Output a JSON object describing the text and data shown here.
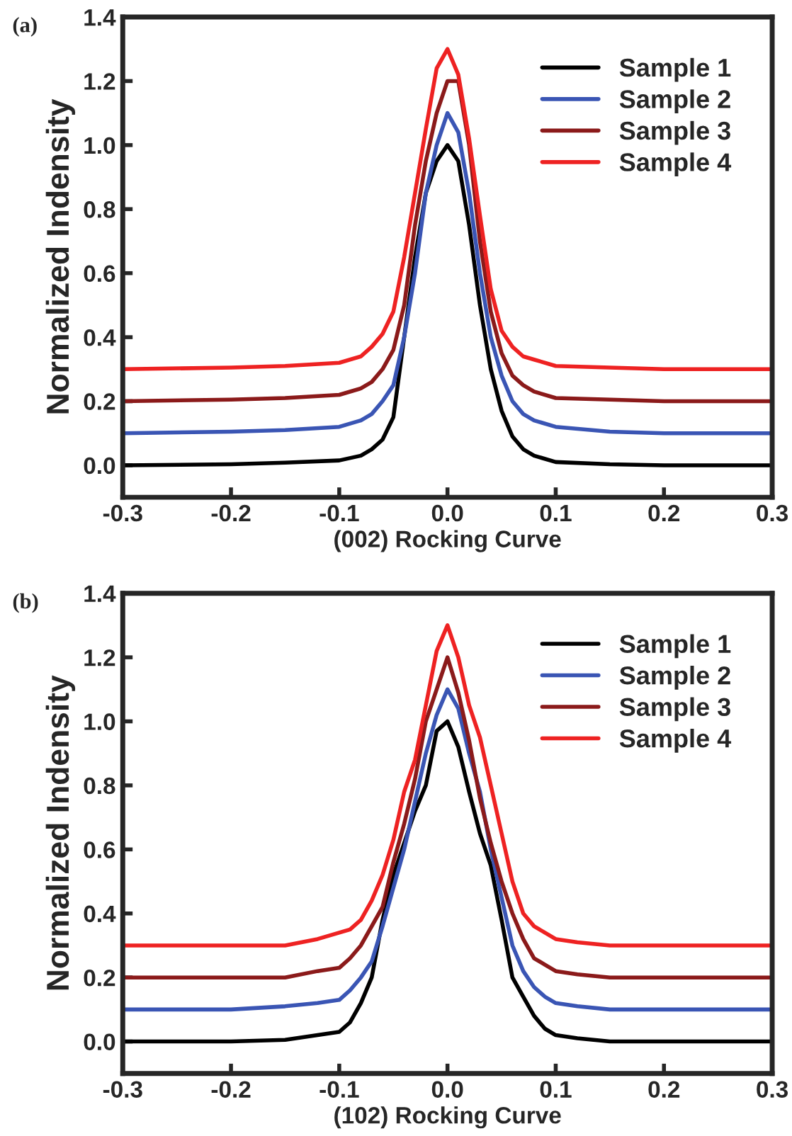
{
  "chart_data": [
    {
      "type": "line",
      "title": "(a)",
      "xlabel": "(002) Rocking Curve",
      "ylabel": "Normalized Indensity",
      "x": [
        -0.3,
        -0.2,
        -0.15,
        -0.1,
        -0.08,
        -0.07,
        -0.06,
        -0.05,
        -0.04,
        -0.03,
        -0.02,
        -0.01,
        0,
        0.01,
        0.02,
        0.03,
        0.04,
        0.05,
        0.06,
        0.07,
        0.08,
        0.1,
        0.15,
        0.2,
        0.3
      ],
      "series": [
        {
          "name": "Sample 1",
          "color": "#000000",
          "values": [
            0,
            0.003,
            0.008,
            0.015,
            0.03,
            0.05,
            0.08,
            0.15,
            0.4,
            0.65,
            0.85,
            0.95,
            1.0,
            0.95,
            0.75,
            0.5,
            0.3,
            0.17,
            0.09,
            0.05,
            0.03,
            0.01,
            0.003,
            0,
            0
          ]
        },
        {
          "name": "Sample 2",
          "color": "#3a55b4",
          "values": [
            0.1,
            0.105,
            0.11,
            0.12,
            0.14,
            0.16,
            0.2,
            0.25,
            0.4,
            0.6,
            0.85,
            1.0,
            1.1,
            1.04,
            0.85,
            0.6,
            0.4,
            0.28,
            0.2,
            0.16,
            0.14,
            0.12,
            0.105,
            0.1,
            0.1
          ]
        },
        {
          "name": "Sample 3",
          "color": "#8b1a1a",
          "values": [
            0.2,
            0.205,
            0.21,
            0.22,
            0.24,
            0.26,
            0.3,
            0.36,
            0.5,
            0.75,
            0.95,
            1.1,
            1.2,
            1.2,
            1.0,
            0.7,
            0.48,
            0.35,
            0.28,
            0.25,
            0.23,
            0.21,
            0.205,
            0.2,
            0.2
          ]
        },
        {
          "name": "Sample 4",
          "color": "#ee2222",
          "values": [
            0.3,
            0.305,
            0.31,
            0.32,
            0.34,
            0.37,
            0.41,
            0.48,
            0.65,
            0.85,
            1.05,
            1.24,
            1.3,
            1.22,
            1.02,
            0.78,
            0.55,
            0.42,
            0.37,
            0.34,
            0.33,
            0.31,
            0.305,
            0.3,
            0.3
          ]
        }
      ],
      "xlim": [
        -0.3,
        0.3
      ],
      "ylim": [
        -0.1,
        1.4
      ],
      "xticks": [
        {
          "value": -0.3,
          "label": "-0.3"
        },
        {
          "value": -0.2,
          "label": "-0.2"
        },
        {
          "value": -0.1,
          "label": "-0.1"
        },
        {
          "value": 0,
          "label": "0.0"
        },
        {
          "value": 0.1,
          "label": "0.1"
        },
        {
          "value": 0.2,
          "label": "0.2"
        },
        {
          "value": 0.3,
          "label": "0.3"
        }
      ],
      "yticks": [
        {
          "value": 0,
          "label": "0.0"
        },
        {
          "value": 0.2,
          "label": "0.2"
        },
        {
          "value": 0.4,
          "label": "0.4"
        },
        {
          "value": 0.6,
          "label": "0.6"
        },
        {
          "value": 0.8,
          "label": "0.8"
        },
        {
          "value": 1.0,
          "label": "1.0"
        },
        {
          "value": 1.2,
          "label": "1.2"
        },
        {
          "value": 1.4,
          "label": "1.4"
        }
      ],
      "legend": "top right",
      "grid": false
    },
    {
      "type": "line",
      "title": "(b)",
      "xlabel": "(102) Rocking Curve",
      "ylabel": "Normalized Indensity",
      "x": [
        -0.3,
        -0.25,
        -0.2,
        -0.15,
        -0.12,
        -0.1,
        -0.09,
        -0.08,
        -0.07,
        -0.06,
        -0.05,
        -0.04,
        -0.03,
        -0.02,
        -0.01,
        0,
        0.01,
        0.02,
        0.03,
        0.04,
        0.05,
        0.06,
        0.07,
        0.08,
        0.09,
        0.1,
        0.12,
        0.15,
        0.2,
        0.25,
        0.3
      ],
      "series": [
        {
          "name": "Sample 1",
          "color": "#000000",
          "values": [
            0,
            0,
            0,
            0.005,
            0.02,
            0.03,
            0.06,
            0.12,
            0.2,
            0.38,
            0.52,
            0.62,
            0.72,
            0.8,
            0.97,
            1.0,
            0.92,
            0.78,
            0.65,
            0.55,
            0.38,
            0.2,
            0.14,
            0.08,
            0.04,
            0.02,
            0.01,
            0,
            0,
            0,
            0
          ]
        },
        {
          "name": "Sample 2",
          "color": "#3a55b4",
          "values": [
            0.1,
            0.1,
            0.1,
            0.11,
            0.12,
            0.13,
            0.16,
            0.2,
            0.25,
            0.36,
            0.48,
            0.6,
            0.75,
            0.9,
            1.02,
            1.1,
            1.04,
            0.9,
            0.78,
            0.6,
            0.45,
            0.3,
            0.22,
            0.17,
            0.14,
            0.12,
            0.11,
            0.1,
            0.1,
            0.1,
            0.1
          ]
        },
        {
          "name": "Sample 3",
          "color": "#8b1a1a",
          "values": [
            0.2,
            0.2,
            0.2,
            0.2,
            0.22,
            0.23,
            0.26,
            0.3,
            0.36,
            0.42,
            0.56,
            0.68,
            0.82,
            1.0,
            1.1,
            1.2,
            1.09,
            0.94,
            0.76,
            0.62,
            0.5,
            0.4,
            0.32,
            0.26,
            0.24,
            0.22,
            0.21,
            0.2,
            0.2,
            0.2,
            0.2
          ]
        },
        {
          "name": "Sample 4",
          "color": "#ee2222",
          "values": [
            0.3,
            0.3,
            0.3,
            0.3,
            0.32,
            0.34,
            0.35,
            0.38,
            0.44,
            0.52,
            0.63,
            0.78,
            0.88,
            1.05,
            1.22,
            1.3,
            1.2,
            1.05,
            0.95,
            0.8,
            0.65,
            0.5,
            0.4,
            0.36,
            0.34,
            0.32,
            0.31,
            0.3,
            0.3,
            0.3,
            0.3
          ]
        }
      ],
      "xlim": [
        -0.3,
        0.3
      ],
      "ylim": [
        -0.1,
        1.4
      ],
      "xticks": [
        {
          "value": -0.3,
          "label": "-0.3"
        },
        {
          "value": -0.2,
          "label": "-0.2"
        },
        {
          "value": -0.1,
          "label": "-0.1"
        },
        {
          "value": 0,
          "label": "0.0"
        },
        {
          "value": 0.1,
          "label": "0.1"
        },
        {
          "value": 0.2,
          "label": "0.2"
        },
        {
          "value": 0.3,
          "label": "0.3"
        }
      ],
      "yticks": [
        {
          "value": 0,
          "label": "0.0"
        },
        {
          "value": 0.2,
          "label": "0.2"
        },
        {
          "value": 0.4,
          "label": "0.4"
        },
        {
          "value": 0.6,
          "label": "0.6"
        },
        {
          "value": 0.8,
          "label": "0.8"
        },
        {
          "value": 1.0,
          "label": "1.0"
        },
        {
          "value": 1.2,
          "label": "1.2"
        },
        {
          "value": 1.4,
          "label": "1.4"
        }
      ],
      "legend": "top right",
      "grid": false
    }
  ]
}
